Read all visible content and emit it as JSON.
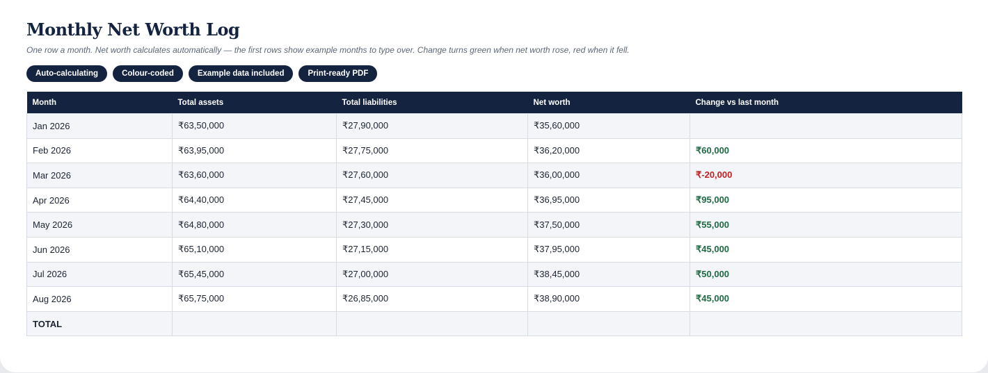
{
  "page": {
    "title": "Monthly Net Worth Log",
    "subtitle": "One row a month. Net worth calculates automatically — the first rows show example months to type over. Change turns green when net worth rose, red when it fell."
  },
  "badges": [
    "Auto-calculating",
    "Colour-coded",
    "Example data included",
    "Print-ready PDF"
  ],
  "colors": {
    "navy": "#14233f",
    "positive": "#1e6b43",
    "negative": "#c21f1f"
  },
  "table": {
    "headers": [
      "Month",
      "Total assets",
      "Total liabilities",
      "Net worth",
      "Change vs last month"
    ],
    "rows": [
      {
        "month": "Jan 2026",
        "assets": "₹63,50,000",
        "liabilities": "₹27,90,000",
        "net": "₹35,60,000",
        "change": "",
        "trend": "none"
      },
      {
        "month": "Feb 2026",
        "assets": "₹63,95,000",
        "liabilities": "₹27,75,000",
        "net": "₹36,20,000",
        "change": "₹60,000",
        "trend": "up"
      },
      {
        "month": "Mar 2026",
        "assets": "₹63,60,000",
        "liabilities": "₹27,60,000",
        "net": "₹36,00,000",
        "change": "₹-20,000",
        "trend": "down"
      },
      {
        "month": "Apr 2026",
        "assets": "₹64,40,000",
        "liabilities": "₹27,45,000",
        "net": "₹36,95,000",
        "change": "₹95,000",
        "trend": "up"
      },
      {
        "month": "May 2026",
        "assets": "₹64,80,000",
        "liabilities": "₹27,30,000",
        "net": "₹37,50,000",
        "change": "₹55,000",
        "trend": "up"
      },
      {
        "month": "Jun 2026",
        "assets": "₹65,10,000",
        "liabilities": "₹27,15,000",
        "net": "₹37,95,000",
        "change": "₹45,000",
        "trend": "up"
      },
      {
        "month": "Jul 2026",
        "assets": "₹65,45,000",
        "liabilities": "₹27,00,000",
        "net": "₹38,45,000",
        "change": "₹50,000",
        "trend": "up"
      },
      {
        "month": "Aug 2026",
        "assets": "₹65,75,000",
        "liabilities": "₹26,85,000",
        "net": "₹38,90,000",
        "change": "₹45,000",
        "trend": "up"
      }
    ],
    "total_label": "TOTAL"
  }
}
